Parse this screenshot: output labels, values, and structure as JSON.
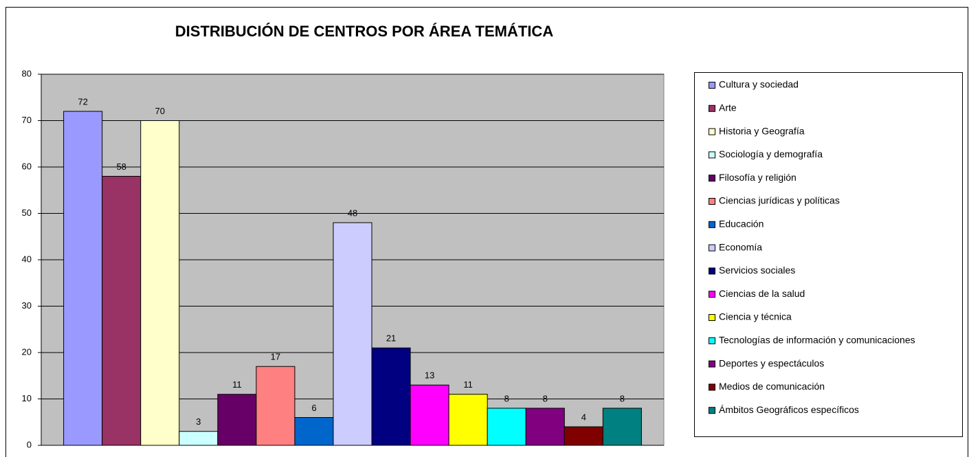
{
  "chart_data": {
    "type": "bar",
    "title": "DISTRIBUCIÓN DE CENTROS POR ÁREA TEMÁTICA",
    "categories": [
      null
    ],
    "ylim": [
      0,
      80
    ],
    "yticks": [
      0,
      10,
      20,
      30,
      40,
      50,
      60,
      70,
      80
    ],
    "grid": true,
    "legend": "right",
    "series": [
      {
        "name": "Cultura y sociedad",
        "color": "#9999ff",
        "values": [
          72
        ]
      },
      {
        "name": "Arte",
        "color": "#993366",
        "values": [
          58
        ]
      },
      {
        "name": "Historia y Geografía",
        "color": "#ffffcc",
        "values": [
          70
        ]
      },
      {
        "name": "Sociología y demografía",
        "color": "#ccffff",
        "values": [
          3
        ]
      },
      {
        "name": "Filosofía y religión",
        "color": "#660066",
        "values": [
          11
        ]
      },
      {
        "name": "Ciencias jurídicas y políticas",
        "color": "#ff8080",
        "values": [
          17
        ]
      },
      {
        "name": "Educación",
        "color": "#0066cc",
        "values": [
          6
        ]
      },
      {
        "name": "Economía",
        "color": "#ccccff",
        "values": [
          48
        ]
      },
      {
        "name": "Servicios sociales",
        "color": "#000080",
        "values": [
          21
        ]
      },
      {
        "name": "Ciencias de la salud",
        "color": "#ff00ff",
        "values": [
          13
        ]
      },
      {
        "name": "Ciencia y técnica",
        "color": "#ffff00",
        "values": [
          11
        ]
      },
      {
        "name": "Tecnologías de información y comunicaciones",
        "color": "#00ffff",
        "values": [
          8
        ]
      },
      {
        "name": "Deportes y espectáculos",
        "color": "#800080",
        "values": [
          8
        ]
      },
      {
        "name": "Medios de comunicación",
        "color": "#800000",
        "values": [
          4
        ]
      },
      {
        "name": "Ámbitos Geográficos específicos",
        "color": "#008080",
        "values": [
          8
        ]
      }
    ]
  }
}
